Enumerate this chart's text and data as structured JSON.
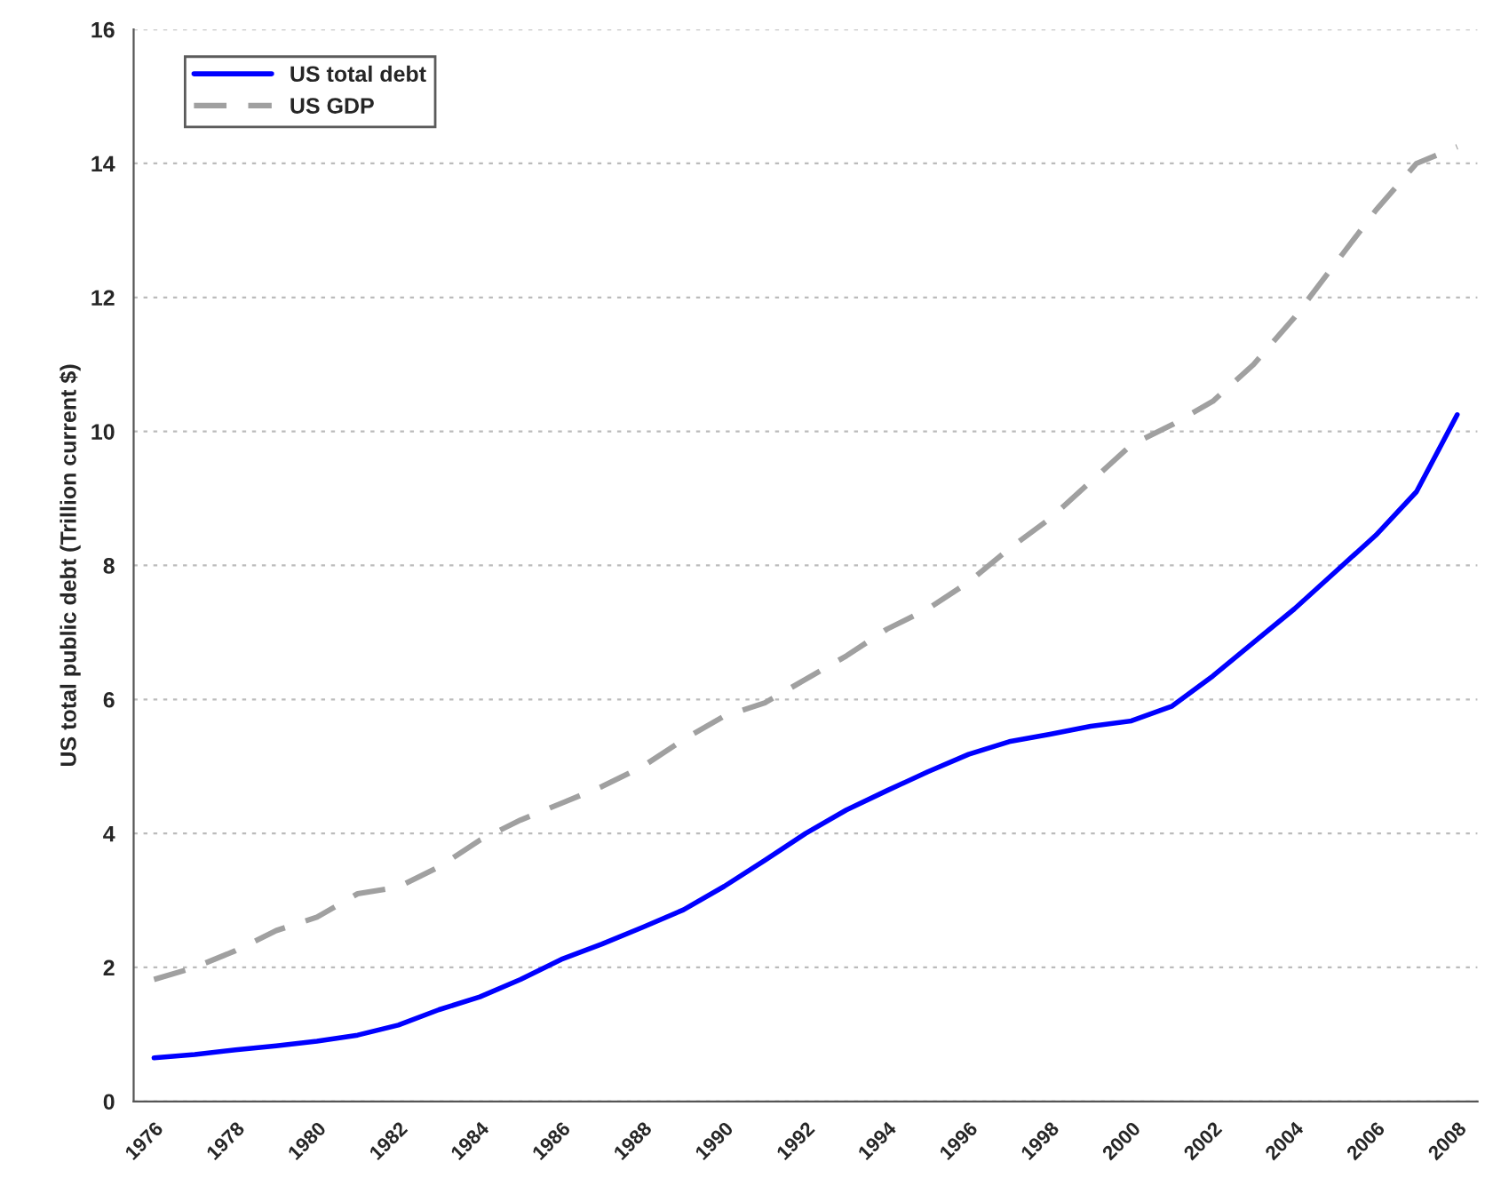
{
  "chart_data": {
    "type": "line",
    "ylabel": "US total public debt (Trillion current $)",
    "x": [
      1976,
      1977,
      1978,
      1979,
      1980,
      1981,
      1982,
      1983,
      1984,
      1985,
      1986,
      1987,
      1988,
      1989,
      1990,
      1991,
      1992,
      1993,
      1994,
      1995,
      1996,
      1997,
      1998,
      1999,
      2000,
      2001,
      2002,
      2003,
      2004,
      2005,
      2006,
      2007,
      2008
    ],
    "series": [
      {
        "name": "US total debt",
        "color": "#0000ff",
        "line_style": "solid",
        "values": [
          0.65,
          0.7,
          0.77,
          0.83,
          0.9,
          0.99,
          1.14,
          1.37,
          1.56,
          1.82,
          2.12,
          2.35,
          2.6,
          2.86,
          3.21,
          3.6,
          4.0,
          4.35,
          4.64,
          4.92,
          5.18,
          5.37,
          5.48,
          5.6,
          5.68,
          5.9,
          6.35,
          6.85,
          7.35,
          7.9,
          8.45,
          9.1,
          10.25
        ]
      },
      {
        "name": "US GDP",
        "color": "#a0a0a0",
        "line_style": "dashed",
        "values": [
          1.82,
          2.0,
          2.25,
          2.55,
          2.75,
          3.1,
          3.2,
          3.5,
          3.9,
          4.2,
          4.45,
          4.7,
          5.0,
          5.4,
          5.75,
          5.95,
          6.3,
          6.65,
          7.05,
          7.35,
          7.75,
          8.25,
          8.7,
          9.25,
          9.8,
          10.1,
          10.45,
          11.0,
          11.7,
          12.5,
          13.3,
          14.0,
          14.25
        ]
      }
    ],
    "xlim": [
      1975.5,
      2008.5
    ],
    "xticks": [
      1976,
      1978,
      1980,
      1982,
      1984,
      1986,
      1988,
      1990,
      1992,
      1994,
      1996,
      1998,
      2000,
      2002,
      2004,
      2006,
      2008
    ],
    "ylim": [
      0,
      16
    ],
    "yticks": [
      0,
      2,
      4,
      6,
      8,
      10,
      12,
      14,
      16
    ],
    "grid": "y",
    "legend": "top left",
    "marker": "none"
  }
}
